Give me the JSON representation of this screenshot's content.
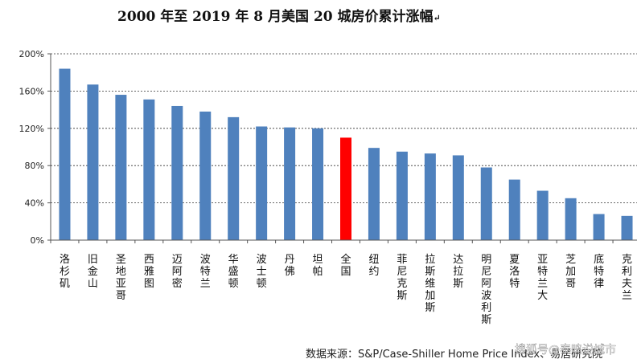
{
  "chart_data": {
    "type": "bar",
    "title": "2000 年至 2019 年 8 月美国 20 城房价累计涨幅",
    "title_mark": "↵",
    "categories": [
      "洛杉矶",
      "旧金山",
      "圣地亚哥",
      "西雅图",
      "迈阿密",
      "波特兰",
      "华盛顿",
      "波士顿",
      "丹佛",
      "坦帕",
      "全国",
      "纽约",
      "菲尼克斯",
      "拉斯维加斯",
      "达拉斯",
      "明尼阿波利斯",
      "夏洛特",
      "亚特兰大",
      "芝加哥",
      "底特律",
      "克利夫兰"
    ],
    "values": [
      184,
      167,
      156,
      151,
      144,
      138,
      132,
      122,
      121,
      120,
      110,
      99,
      95,
      93,
      91,
      78,
      65,
      53,
      45,
      28,
      26
    ],
    "ylim": [
      0,
      200
    ],
    "yticks": [
      "0%",
      "40%",
      "80%",
      "120%",
      "160%",
      "200%"
    ],
    "ytick_values": [
      0,
      40,
      80,
      120,
      160,
      200
    ],
    "highlight_category": "全国",
    "colors": {
      "bar": "#4F81BD",
      "highlight": "#FF0000",
      "grid": "#333333"
    },
    "grid": true,
    "source": "数据来源：S&P/Case-Shiller Home Price Index、易居研究院",
    "watermark": "搜狐号@泰鸣说城市"
  }
}
